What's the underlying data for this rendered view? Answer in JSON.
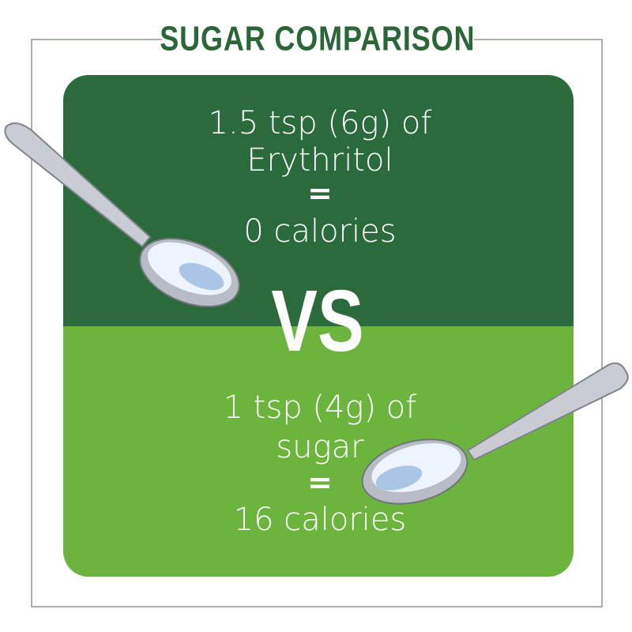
{
  "title": "SUGAR COMPARISON",
  "top": {
    "lines": [
      "1.5 tsp (6g) of",
      "Erythritol",
      "=",
      "0 calories"
    ]
  },
  "vs": "VS",
  "bottom": {
    "lines": [
      "1 tsp (4g) of",
      "sugar",
      "=",
      "16 calories"
    ]
  }
}
